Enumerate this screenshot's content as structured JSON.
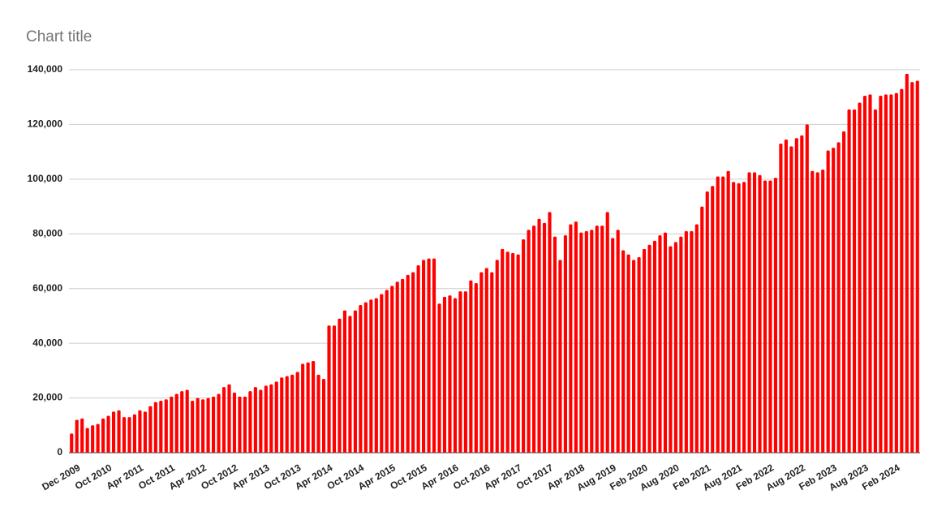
{
  "chart_data": {
    "type": "bar",
    "title": "Chart title",
    "categories": [
      "Dec 2009",
      null,
      null,
      null,
      null,
      null,
      "Oct 2010",
      null,
      null,
      null,
      null,
      null,
      "Apr 2011",
      null,
      null,
      null,
      null,
      null,
      "Oct 2011",
      null,
      null,
      null,
      null,
      null,
      "Apr 2012",
      null,
      null,
      null,
      null,
      null,
      "Oct 2012",
      null,
      null,
      null,
      null,
      null,
      "Apr 2013",
      null,
      null,
      null,
      null,
      null,
      "Oct 2013",
      null,
      null,
      null,
      null,
      null,
      "Apr 2014",
      null,
      null,
      null,
      null,
      null,
      "Oct 2014",
      null,
      null,
      null,
      null,
      null,
      "Apr 2015",
      null,
      null,
      null,
      null,
      null,
      "Oct 2015",
      null,
      null,
      null,
      null,
      null,
      "Apr 2016",
      null,
      null,
      null,
      null,
      null,
      "Oct 2016",
      null,
      null,
      null,
      null,
      null,
      "Apr 2017",
      null,
      null,
      null,
      null,
      null,
      "Oct 2017",
      null,
      null,
      null,
      null,
      null,
      "Apr 2018",
      null,
      null,
      null,
      null,
      null,
      "Aug 2019",
      null,
      null,
      null,
      null,
      null,
      "Feb 2020",
      null,
      null,
      null,
      null,
      null,
      "Aug 2020",
      null,
      null,
      null,
      null,
      null,
      "Feb 2021",
      null,
      null,
      null,
      null,
      null,
      "Aug 2021",
      null,
      null,
      null,
      null,
      null,
      "Feb 2022",
      null,
      null,
      null,
      null,
      null,
      "Aug 2022",
      null,
      null,
      null,
      null,
      null,
      "Feb 2023",
      null,
      null,
      null,
      null,
      null,
      "Aug 2023",
      null,
      null,
      null,
      null,
      null,
      "Feb 2024",
      null,
      null,
      null,
      null,
      null
    ],
    "values": [
      7000,
      12000,
      12500,
      9000,
      10000,
      10500,
      12500,
      13500,
      15000,
      15500,
      13000,
      13000,
      14000,
      15500,
      15000,
      17000,
      18500,
      19000,
      19500,
      20500,
      21500,
      22500,
      23000,
      19000,
      20000,
      19500,
      20000,
      20500,
      21500,
      24000,
      25000,
      22000,
      20500,
      20500,
      22500,
      24000,
      23000,
      24500,
      25000,
      26000,
      27500,
      28000,
      28500,
      29500,
      32500,
      33000,
      33500,
      28500,
      27000,
      46500,
      46500,
      49000,
      52000,
      50000,
      52000,
      54000,
      55000,
      56000,
      56500,
      58000,
      59500,
      61000,
      62500,
      63500,
      65000,
      66000,
      68500,
      70500,
      71000,
      71000,
      54500,
      57000,
      57500,
      56500,
      59000,
      59000,
      63000,
      62000,
      66000,
      67500,
      66000,
      70500,
      74500,
      73500,
      73000,
      72500,
      78000,
      81500,
      83000,
      85500,
      84000,
      88000,
      79000,
      70500,
      79500,
      83500,
      84500,
      80500,
      81000,
      81500,
      83000,
      83000,
      88000,
      78500,
      81500,
      74000,
      72500,
      70500,
      71500,
      74500,
      76000,
      77500,
      79500,
      80500,
      75500,
      77000,
      79000,
      81000,
      81000,
      83500,
      90000,
      95500,
      97500,
      101000,
      101000,
      103000,
      99000,
      98500,
      99000,
      102500,
      102500,
      101500,
      99500,
      99500,
      100500,
      113000,
      114500,
      112000,
      115000,
      116000,
      120000,
      103000,
      102500,
      103500,
      110500,
      111500,
      113500,
      117500,
      125500,
      125500,
      128000,
      130500,
      131000,
      125500,
      130500,
      131000,
      131000,
      131500,
      133000,
      138500,
      135500,
      136000
    ],
    "color": "#ff0000",
    "ylim": [
      0,
      140000
    ],
    "yticks": [
      0,
      {
        "value": 20000,
        "label": "20,000"
      },
      {
        "value": 40000,
        "label": "40,000"
      },
      {
        "value": 60000,
        "label": "60,000"
      },
      {
        "value": 80000,
        "label": "80,000"
      },
      {
        "value": 100000,
        "label": "100,000"
      },
      {
        "value": 120000,
        "label": "120,000"
      },
      {
        "value": 140000,
        "label": "140,000"
      }
    ],
    "grid": true
  }
}
